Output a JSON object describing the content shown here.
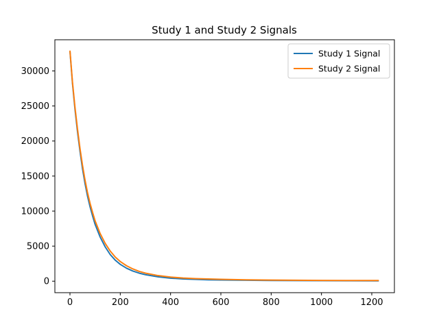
{
  "chart_data": {
    "type": "line",
    "title": "Study 1 and Study 2 Signals",
    "xlabel": "",
    "ylabel": "",
    "xlim": [
      -60,
      1290
    ],
    "ylim": [
      -1640,
      34450
    ],
    "xticks": [
      0,
      200,
      400,
      600,
      800,
      1000,
      1200
    ],
    "xtick_labels": [
      "0",
      "200",
      "400",
      "600",
      "800",
      "1000",
      "1200"
    ],
    "yticks": [
      0,
      5000,
      10000,
      15000,
      20000,
      25000,
      30000
    ],
    "ytick_labels": [
      "0",
      "5000",
      "10000",
      "15000",
      "20000",
      "25000",
      "30000"
    ],
    "grid": false,
    "legend_position": "top-right",
    "series": [
      {
        "name": "Study 1 Signal",
        "color": "#1f77b4",
        "x": [
          0,
          10,
          20,
          30,
          40,
          50,
          60,
          70,
          80,
          90,
          100,
          120,
          140,
          160,
          180,
          200,
          225,
          250,
          275,
          300,
          350,
          400,
          450,
          500,
          550,
          600,
          700,
          800,
          900,
          1000,
          1100,
          1228
        ],
        "y": [
          32800,
          28200,
          24500,
          21300,
          18500,
          16000,
          13900,
          12100,
          10600,
          9300,
          8100,
          6300,
          4900,
          3800,
          3000,
          2400,
          1850,
          1450,
          1150,
          930,
          620,
          430,
          320,
          250,
          200,
          170,
          130,
          100,
          80,
          70,
          60,
          50
        ]
      },
      {
        "name": "Study 2 Signal",
        "color": "#ff7f0e",
        "x": [
          0,
          10,
          20,
          30,
          40,
          50,
          60,
          70,
          80,
          90,
          100,
          120,
          140,
          160,
          180,
          200,
          225,
          250,
          275,
          300,
          350,
          400,
          450,
          500,
          550,
          600,
          700,
          800,
          900,
          1000,
          1100,
          1228
        ],
        "y": [
          32900,
          28400,
          24800,
          21700,
          18900,
          16500,
          14400,
          12600,
          11100,
          9800,
          8600,
          6800,
          5400,
          4300,
          3450,
          2800,
          2200,
          1750,
          1400,
          1150,
          800,
          580,
          450,
          370,
          310,
          270,
          200,
          160,
          130,
          110,
          100,
          90
        ]
      }
    ]
  }
}
